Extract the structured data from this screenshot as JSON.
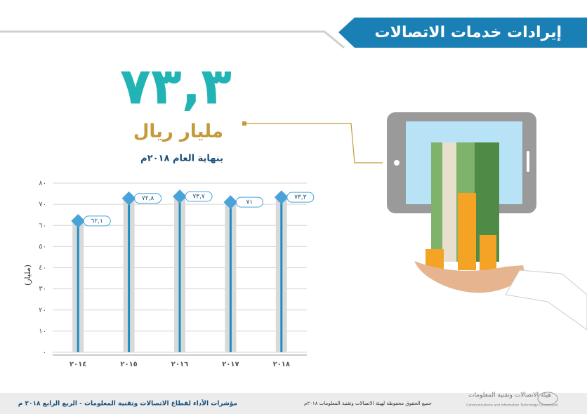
{
  "header": {
    "title": "إيرادات خدمات الاتصالات"
  },
  "headline": {
    "value": "٧٣,٣",
    "unit": "مليار ريال",
    "note": "بنهاية العام ٢٠١٨م"
  },
  "chart_data": {
    "type": "bar",
    "y_label": "(مليار)",
    "categories": [
      "٢٠١٤",
      "٢٠١٥",
      "٢٠١٦",
      "٢٠١٧",
      "٢٠١٨"
    ],
    "values": [
      62.1,
      72.8,
      73.7,
      71,
      73.3
    ],
    "value_labels": [
      "٦٢,١",
      "٧٢,٨",
      "٧٣,٧",
      "٧١",
      "٧٣,٣"
    ],
    "color": "#1b8fc4",
    "ylim": [
      0,
      80
    ],
    "yticks": [
      {
        "value": 0,
        "label": "٠"
      },
      {
        "value": 10,
        "label": "١٠"
      },
      {
        "value": 20,
        "label": "٢٠"
      },
      {
        "value": 30,
        "label": "٣٠"
      },
      {
        "value": 40,
        "label": "٤٠"
      },
      {
        "value": 50,
        "label": "٥٠"
      },
      {
        "value": 60,
        "label": "٦٠"
      },
      {
        "value": 70,
        "label": "٧٠"
      },
      {
        "value": 80,
        "label": "٨٠"
      }
    ],
    "grid": true
  },
  "footer": {
    "left": "مؤشرات الأداء لقطاع الاتصالات وتقنية المعلومات - الربع الرابع ٢٠١٨ م",
    "center": "جميع الحقوق محفوظة لهيئة الاتصالات وتقنية المعلومات ٢٠١٨م",
    "logo_ar": "هيئة الاتصالات وتقنية المعلومات",
    "logo_en": "Communications and Information Technology Commission"
  }
}
